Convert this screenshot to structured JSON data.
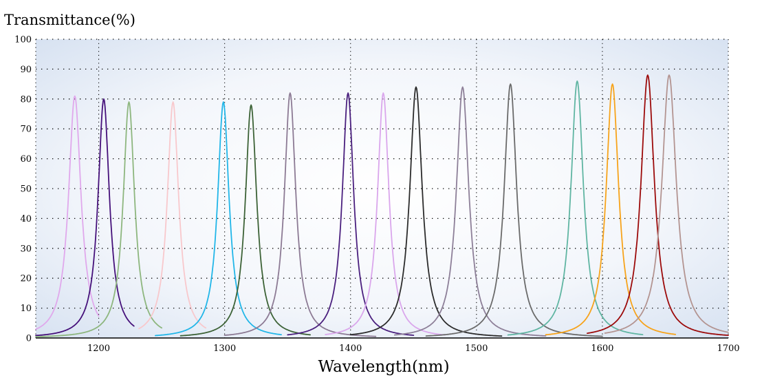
{
  "chart_data": {
    "type": "line",
    "title": "",
    "ylabel": "Transmittance(%)",
    "xlabel": "Wavelength(nm)",
    "xlim": [
      1150,
      1700
    ],
    "ylim": [
      0,
      100
    ],
    "x_ticks": [
      1200,
      1300,
      1400,
      1500,
      1600,
      1700
    ],
    "y_ticks": [
      0,
      10,
      20,
      30,
      40,
      50,
      60,
      70,
      80,
      90,
      100
    ],
    "grid": true,
    "series": [
      {
        "color": "#e0a8ec",
        "center": 1181,
        "peak": 81,
        "fwhm": 12,
        "range": [
          1150,
          1200
        ]
      },
      {
        "color": "#45107a",
        "center": 1204,
        "peak": 80,
        "fwhm": 11,
        "range": [
          1150,
          1228
        ]
      },
      {
        "color": "#8db67e",
        "center": 1224,
        "peak": 79,
        "fwhm": 11,
        "range": [
          1150,
          1250
        ]
      },
      {
        "color": "#f8c8cc",
        "center": 1259,
        "peak": 79,
        "fwhm": 11,
        "range": [
          1232,
          1285
        ]
      },
      {
        "color": "#21b6e8",
        "center": 1299,
        "peak": 79,
        "fwhm": 11,
        "range": [
          1245,
          1345
        ]
      },
      {
        "color": "#3c6236",
        "center": 1321,
        "peak": 78,
        "fwhm": 11,
        "range": [
          1265,
          1368
        ]
      },
      {
        "color": "#8c7a94",
        "center": 1352,
        "peak": 82,
        "fwhm": 11,
        "range": [
          1300,
          1420
        ]
      },
      {
        "color": "#4a1f7e",
        "center": 1398,
        "peak": 82,
        "fwhm": 11,
        "range": [
          1350,
          1450
        ]
      },
      {
        "color": "#daa6ec",
        "center": 1426,
        "peak": 82,
        "fwhm": 11,
        "range": [
          1380,
          1475
        ]
      },
      {
        "color": "#2b2b2b",
        "center": 1452,
        "peak": 84,
        "fwhm": 12,
        "range": [
          1400,
          1520
        ]
      },
      {
        "color": "#8d7f98",
        "center": 1489,
        "peak": 84,
        "fwhm": 12,
        "range": [
          1435,
          1555
        ]
      },
      {
        "color": "#6a6a6a",
        "center": 1527,
        "peak": 85,
        "fwhm": 12,
        "range": [
          1460,
          1600
        ]
      },
      {
        "color": "#5fb5a2",
        "center": 1580,
        "peak": 86,
        "fwhm": 12,
        "range": [
          1525,
          1632
        ]
      },
      {
        "color": "#f7a31a",
        "center": 1608,
        "peak": 85,
        "fwhm": 12,
        "range": [
          1555,
          1658
        ]
      },
      {
        "color": "#9c0a0a",
        "center": 1636,
        "peak": 88,
        "fwhm": 13,
        "range": [
          1588,
          1700
        ]
      },
      {
        "color": "#b39491",
        "center": 1653,
        "peak": 88,
        "fwhm": 14,
        "range": [
          1602,
          1700
        ]
      }
    ]
  }
}
